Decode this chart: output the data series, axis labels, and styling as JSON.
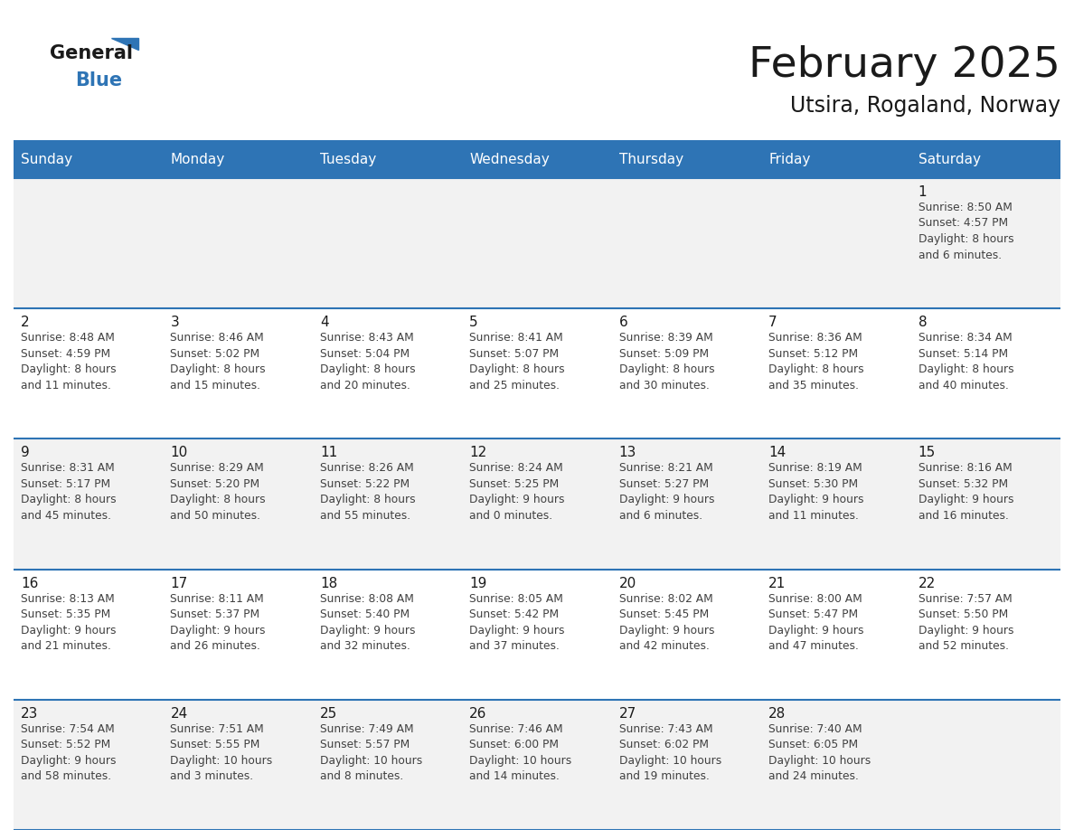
{
  "title": "February 2025",
  "subtitle": "Utsira, Rogaland, Norway",
  "header_bg": "#2e74b5",
  "header_text": "#ffffff",
  "row_bg_light": "#f2f2f2",
  "row_bg_white": "#ffffff",
  "separator_color": "#2e74b5",
  "border_color": "#c0c0c0",
  "day_headers": [
    "Sunday",
    "Monday",
    "Tuesday",
    "Wednesday",
    "Thursday",
    "Friday",
    "Saturday"
  ],
  "cell_text_color": "#404040",
  "day_num_color": "#1a1a1a",
  "logo_general_color": "#1a1a1a",
  "logo_blue_color": "#2e74b5",
  "calendar": [
    [
      {
        "day": 0,
        "text": ""
      },
      {
        "day": 0,
        "text": ""
      },
      {
        "day": 0,
        "text": ""
      },
      {
        "day": 0,
        "text": ""
      },
      {
        "day": 0,
        "text": ""
      },
      {
        "day": 0,
        "text": ""
      },
      {
        "day": 1,
        "text": "Sunrise: 8:50 AM\nSunset: 4:57 PM\nDaylight: 8 hours\nand 6 minutes."
      }
    ],
    [
      {
        "day": 2,
        "text": "Sunrise: 8:48 AM\nSunset: 4:59 PM\nDaylight: 8 hours\nand 11 minutes."
      },
      {
        "day": 3,
        "text": "Sunrise: 8:46 AM\nSunset: 5:02 PM\nDaylight: 8 hours\nand 15 minutes."
      },
      {
        "day": 4,
        "text": "Sunrise: 8:43 AM\nSunset: 5:04 PM\nDaylight: 8 hours\nand 20 minutes."
      },
      {
        "day": 5,
        "text": "Sunrise: 8:41 AM\nSunset: 5:07 PM\nDaylight: 8 hours\nand 25 minutes."
      },
      {
        "day": 6,
        "text": "Sunrise: 8:39 AM\nSunset: 5:09 PM\nDaylight: 8 hours\nand 30 minutes."
      },
      {
        "day": 7,
        "text": "Sunrise: 8:36 AM\nSunset: 5:12 PM\nDaylight: 8 hours\nand 35 minutes."
      },
      {
        "day": 8,
        "text": "Sunrise: 8:34 AM\nSunset: 5:14 PM\nDaylight: 8 hours\nand 40 minutes."
      }
    ],
    [
      {
        "day": 9,
        "text": "Sunrise: 8:31 AM\nSunset: 5:17 PM\nDaylight: 8 hours\nand 45 minutes."
      },
      {
        "day": 10,
        "text": "Sunrise: 8:29 AM\nSunset: 5:20 PM\nDaylight: 8 hours\nand 50 minutes."
      },
      {
        "day": 11,
        "text": "Sunrise: 8:26 AM\nSunset: 5:22 PM\nDaylight: 8 hours\nand 55 minutes."
      },
      {
        "day": 12,
        "text": "Sunrise: 8:24 AM\nSunset: 5:25 PM\nDaylight: 9 hours\nand 0 minutes."
      },
      {
        "day": 13,
        "text": "Sunrise: 8:21 AM\nSunset: 5:27 PM\nDaylight: 9 hours\nand 6 minutes."
      },
      {
        "day": 14,
        "text": "Sunrise: 8:19 AM\nSunset: 5:30 PM\nDaylight: 9 hours\nand 11 minutes."
      },
      {
        "day": 15,
        "text": "Sunrise: 8:16 AM\nSunset: 5:32 PM\nDaylight: 9 hours\nand 16 minutes."
      }
    ],
    [
      {
        "day": 16,
        "text": "Sunrise: 8:13 AM\nSunset: 5:35 PM\nDaylight: 9 hours\nand 21 minutes."
      },
      {
        "day": 17,
        "text": "Sunrise: 8:11 AM\nSunset: 5:37 PM\nDaylight: 9 hours\nand 26 minutes."
      },
      {
        "day": 18,
        "text": "Sunrise: 8:08 AM\nSunset: 5:40 PM\nDaylight: 9 hours\nand 32 minutes."
      },
      {
        "day": 19,
        "text": "Sunrise: 8:05 AM\nSunset: 5:42 PM\nDaylight: 9 hours\nand 37 minutes."
      },
      {
        "day": 20,
        "text": "Sunrise: 8:02 AM\nSunset: 5:45 PM\nDaylight: 9 hours\nand 42 minutes."
      },
      {
        "day": 21,
        "text": "Sunrise: 8:00 AM\nSunset: 5:47 PM\nDaylight: 9 hours\nand 47 minutes."
      },
      {
        "day": 22,
        "text": "Sunrise: 7:57 AM\nSunset: 5:50 PM\nDaylight: 9 hours\nand 52 minutes."
      }
    ],
    [
      {
        "day": 23,
        "text": "Sunrise: 7:54 AM\nSunset: 5:52 PM\nDaylight: 9 hours\nand 58 minutes."
      },
      {
        "day": 24,
        "text": "Sunrise: 7:51 AM\nSunset: 5:55 PM\nDaylight: 10 hours\nand 3 minutes."
      },
      {
        "day": 25,
        "text": "Sunrise: 7:49 AM\nSunset: 5:57 PM\nDaylight: 10 hours\nand 8 minutes."
      },
      {
        "day": 26,
        "text": "Sunrise: 7:46 AM\nSunset: 6:00 PM\nDaylight: 10 hours\nand 14 minutes."
      },
      {
        "day": 27,
        "text": "Sunrise: 7:43 AM\nSunset: 6:02 PM\nDaylight: 10 hours\nand 19 minutes."
      },
      {
        "day": 28,
        "text": "Sunrise: 7:40 AM\nSunset: 6:05 PM\nDaylight: 10 hours\nand 24 minutes."
      },
      {
        "day": 0,
        "text": ""
      }
    ]
  ]
}
